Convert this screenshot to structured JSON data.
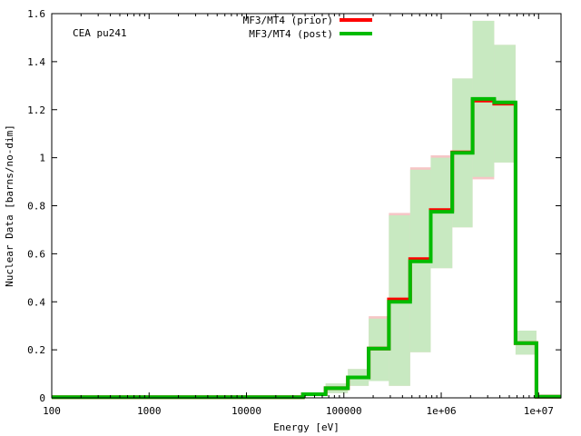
{
  "chart_data": {
    "type": "line",
    "annotation": "CEA pu241",
    "xlabel": "Energy [eV]",
    "ylabel": "Nuclear Data [barns/no-dim]",
    "x_scale": "log",
    "xlim": [
      100,
      17000000
    ],
    "ylim": [
      0,
      1.6
    ],
    "x_ticks": [
      {
        "value": 100,
        "label": "100"
      },
      {
        "value": 1000,
        "label": "1000"
      },
      {
        "value": 10000,
        "label": "10000"
      },
      {
        "value": 100000,
        "label": "100000"
      },
      {
        "value": 1000000,
        "label": "1e+06"
      },
      {
        "value": 10000000,
        "label": "1e+07"
      }
    ],
    "y_ticks": [
      {
        "value": 0,
        "label": "0"
      },
      {
        "value": 0.2,
        "label": "0.2"
      },
      {
        "value": 0.4,
        "label": "0.4"
      },
      {
        "value": 0.6,
        "label": "0.6"
      },
      {
        "value": 0.8,
        "label": "0.8"
      },
      {
        "value": 1.0,
        "label": "1"
      },
      {
        "value": 1.2,
        "label": "1.2"
      },
      {
        "value": 1.4,
        "label": "1.4"
      },
      {
        "value": 1.6,
        "label": "1.6"
      }
    ],
    "legend_position": "top-center",
    "bin_edges": [
      100,
      38000,
      65000,
      110000,
      180000,
      290000,
      480000,
      780000,
      1300000,
      2100000,
      3500000,
      5800000,
      9500000,
      17000000
    ],
    "series": [
      {
        "name": "MF3/MT4 (prior)",
        "color": "#ff0000",
        "band_color": "#f5bcbc",
        "values": [
          0.003,
          0.015,
          0.04,
          0.085,
          0.205,
          0.41,
          0.578,
          0.782,
          1.022,
          1.238,
          1.225,
          0.228,
          0.005
        ],
        "band_lower": [
          0.003,
          0.01,
          0.02,
          0.05,
          0.07,
          0.05,
          0.19,
          0.54,
          0.71,
          0.91,
          0.98,
          0.18,
          0.004
        ],
        "band_upper": [
          0.003,
          0.02,
          0.06,
          0.12,
          0.34,
          0.77,
          0.96,
          1.01,
          1.33,
          1.57,
          1.47,
          0.28,
          0.006
        ]
      },
      {
        "name": "MF3/MT4 (post)",
        "color": "#00bb00",
        "band_color": "#bfeebf",
        "values": [
          0.003,
          0.015,
          0.04,
          0.085,
          0.205,
          0.4,
          0.568,
          0.775,
          1.02,
          1.245,
          1.23,
          0.228,
          0.005
        ],
        "band_lower": [
          0.003,
          0.01,
          0.02,
          0.05,
          0.07,
          0.05,
          0.19,
          0.54,
          0.71,
          0.92,
          0.98,
          0.18,
          0.004
        ],
        "band_upper": [
          0.003,
          0.02,
          0.06,
          0.12,
          0.33,
          0.76,
          0.95,
          1.0,
          1.33,
          1.57,
          1.47,
          0.28,
          0.006
        ]
      }
    ]
  }
}
